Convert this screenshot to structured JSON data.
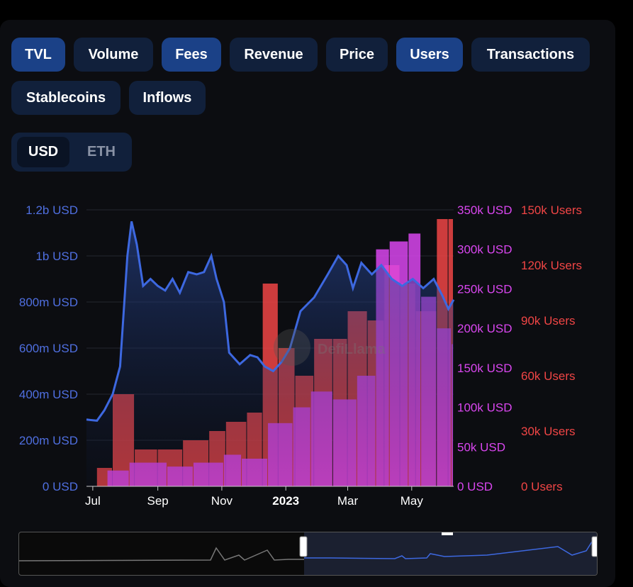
{
  "tabs": [
    {
      "label": "TVL",
      "active": true
    },
    {
      "label": "Volume",
      "active": false
    },
    {
      "label": "Fees",
      "active": true
    },
    {
      "label": "Revenue",
      "active": false
    },
    {
      "label": "Price",
      "active": false
    },
    {
      "label": "Users",
      "active": true
    },
    {
      "label": "Transactions",
      "active": false
    },
    {
      "label": "Stablecoins",
      "active": false
    },
    {
      "label": "Inflows",
      "active": false
    }
  ],
  "denomination": {
    "options": [
      "USD",
      "ETH"
    ],
    "selected": "USD"
  },
  "watermark": "DefiLlama",
  "chart_data": {
    "type": "area",
    "x_ticks": [
      "Jul",
      "Sep",
      "Nov",
      "2023",
      "Mar",
      "May"
    ],
    "axes": {
      "tvl": {
        "ticks": [
          "0 USD",
          "200m USD",
          "400m USD",
          "600m USD",
          "800m USD",
          "1b USD",
          "1.2b USD"
        ],
        "max": 1200000000,
        "color": "#4f6fe0"
      },
      "fees": {
        "ticks": [
          "0 USD",
          "50k USD",
          "100k USD",
          "150k USD",
          "200k USD",
          "250k USD",
          "300k USD",
          "350k USD"
        ],
        "max": 350000,
        "color": "#d946ef"
      },
      "users": {
        "ticks": [
          "0 Users",
          "30k Users",
          "60k Users",
          "90k Users",
          "120k Users",
          "150k Users"
        ],
        "max": 150000,
        "color": "#f04545"
      }
    },
    "series": [
      {
        "name": "TVL",
        "type": "area",
        "color": "#3d68e0",
        "points": [
          [
            "2022-06-25",
            290000000
          ],
          [
            "2022-07-05",
            285000000
          ],
          [
            "2022-07-12",
            330000000
          ],
          [
            "2022-07-20",
            400000000
          ],
          [
            "2022-07-27",
            520000000
          ],
          [
            "2022-08-03",
            1000000000
          ],
          [
            "2022-08-07",
            1150000000
          ],
          [
            "2022-08-12",
            1050000000
          ],
          [
            "2022-08-18",
            870000000
          ],
          [
            "2022-08-25",
            900000000
          ],
          [
            "2022-09-01",
            870000000
          ],
          [
            "2022-09-08",
            850000000
          ],
          [
            "2022-09-15",
            900000000
          ],
          [
            "2022-09-22",
            840000000
          ],
          [
            "2022-09-30",
            930000000
          ],
          [
            "2022-10-08",
            920000000
          ],
          [
            "2022-10-15",
            930000000
          ],
          [
            "2022-10-22",
            1000000000
          ],
          [
            "2022-10-27",
            900000000
          ],
          [
            "2022-11-03",
            800000000
          ],
          [
            "2022-11-08",
            580000000
          ],
          [
            "2022-11-18",
            530000000
          ],
          [
            "2022-11-28",
            570000000
          ],
          [
            "2022-12-05",
            560000000
          ],
          [
            "2022-12-12",
            520000000
          ],
          [
            "2022-12-20",
            500000000
          ],
          [
            "2022-12-28",
            540000000
          ],
          [
            "2023-01-05",
            600000000
          ],
          [
            "2023-01-15",
            760000000
          ],
          [
            "2023-01-28",
            820000000
          ],
          [
            "2023-02-10",
            920000000
          ],
          [
            "2023-02-20",
            1000000000
          ],
          [
            "2023-02-28",
            960000000
          ],
          [
            "2023-03-06",
            860000000
          ],
          [
            "2023-03-14",
            970000000
          ],
          [
            "2023-03-24",
            920000000
          ],
          [
            "2023-04-02",
            960000000
          ],
          [
            "2023-04-12",
            900000000
          ],
          [
            "2023-04-22",
            870000000
          ],
          [
            "2023-05-02",
            900000000
          ],
          [
            "2023-05-12",
            860000000
          ],
          [
            "2023-05-22",
            900000000
          ],
          [
            "2023-05-30",
            830000000
          ],
          [
            "2023-06-05",
            770000000
          ],
          [
            "2023-06-10",
            810000000
          ]
        ]
      },
      {
        "name": "Fees",
        "type": "bar",
        "color": "#d946ef",
        "points": [
          [
            "2022-07-15",
            20000
          ],
          [
            "2022-08-05",
            30000
          ],
          [
            "2022-09-10",
            25000
          ],
          [
            "2022-10-05",
            30000
          ],
          [
            "2022-11-03",
            40000
          ],
          [
            "2022-11-20",
            35000
          ],
          [
            "2022-12-15",
            80000
          ],
          [
            "2023-01-08",
            100000
          ],
          [
            "2023-01-25",
            120000
          ],
          [
            "2023-02-15",
            110000
          ],
          [
            "2023-03-10",
            140000
          ],
          [
            "2023-03-28",
            300000
          ],
          [
            "2023-04-10",
            310000
          ],
          [
            "2023-04-28",
            320000
          ],
          [
            "2023-05-10",
            240000
          ],
          [
            "2023-05-25",
            200000
          ],
          [
            "2023-06-08",
            180000
          ]
        ]
      },
      {
        "name": "Users",
        "type": "bar",
        "color": "#f04545",
        "points": [
          [
            "2022-07-05",
            10000
          ],
          [
            "2022-07-20",
            50000
          ],
          [
            "2022-08-10",
            20000
          ],
          [
            "2022-09-01",
            20000
          ],
          [
            "2022-09-25",
            25000
          ],
          [
            "2022-10-20",
            30000
          ],
          [
            "2022-11-05",
            35000
          ],
          [
            "2022-11-25",
            40000
          ],
          [
            "2022-12-10",
            110000
          ],
          [
            "2022-12-25",
            75000
          ],
          [
            "2023-01-10",
            60000
          ],
          [
            "2023-01-28",
            80000
          ],
          [
            "2023-02-15",
            80000
          ],
          [
            "2023-03-01",
            95000
          ],
          [
            "2023-03-20",
            90000
          ],
          [
            "2023-04-05",
            120000
          ],
          [
            "2023-04-20",
            110000
          ],
          [
            "2023-05-05",
            95000
          ],
          [
            "2023-05-25",
            145000
          ],
          [
            "2023-06-05",
            145000
          ]
        ]
      }
    ]
  }
}
